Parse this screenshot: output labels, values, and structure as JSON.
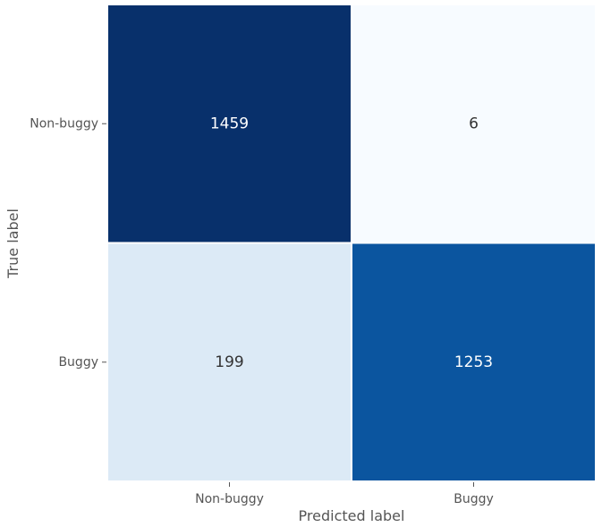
{
  "chart_data": {
    "type": "heatmap",
    "subtype": "confusion_matrix",
    "title": "",
    "xlabel": "Predicted label",
    "ylabel": "True label",
    "x_categories": [
      "Non-buggy",
      "Buggy"
    ],
    "y_categories": [
      "Non-buggy",
      "Buggy"
    ],
    "values": [
      [
        1459,
        6
      ],
      [
        199,
        1253
      ]
    ],
    "colormap": "Blues",
    "color_range": [
      6,
      1459
    ],
    "colorbar": false,
    "grid": false,
    "colors": {
      "low": "#f7fbff",
      "high": "#08306b",
      "text_dark": "#333333",
      "text_light": "#ffffff",
      "cell_border": "#ffffff"
    }
  }
}
